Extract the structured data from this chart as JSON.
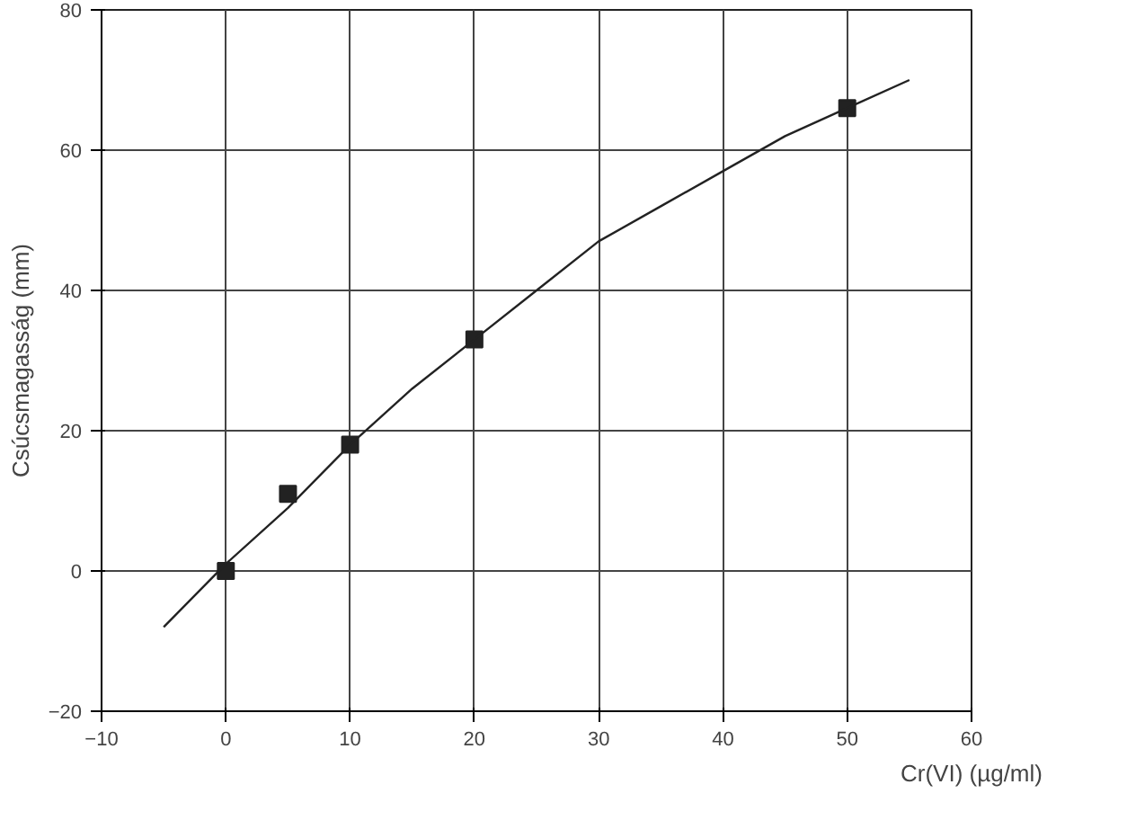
{
  "chart_data": {
    "type": "scatter",
    "xlabel": "Cr(VI) (µg/ml)",
    "ylabel": "Csúcsmagasság (mm)",
    "xlim": [
      -10,
      60
    ],
    "ylim": [
      -20,
      80
    ],
    "xticks": [
      -10,
      0,
      10,
      20,
      30,
      40,
      50,
      60
    ],
    "yticks": [
      -20,
      0,
      20,
      40,
      60,
      80
    ],
    "grid": true,
    "series": [
      {
        "type": "scatter",
        "marker": "square",
        "color": "#222222",
        "x": [
          0,
          5,
          10,
          20,
          50
        ],
        "values": [
          0,
          11,
          18,
          33,
          66
        ]
      },
      {
        "type": "line",
        "marker": "none",
        "line_style": "solid",
        "color": "#222222",
        "x": [
          -5,
          0,
          5,
          10,
          15,
          20,
          25,
          30,
          35,
          40,
          45,
          50,
          55
        ],
        "values": [
          -8,
          1,
          9,
          18,
          26,
          33,
          40,
          47,
          52,
          57,
          62,
          66,
          70
        ]
      }
    ]
  }
}
